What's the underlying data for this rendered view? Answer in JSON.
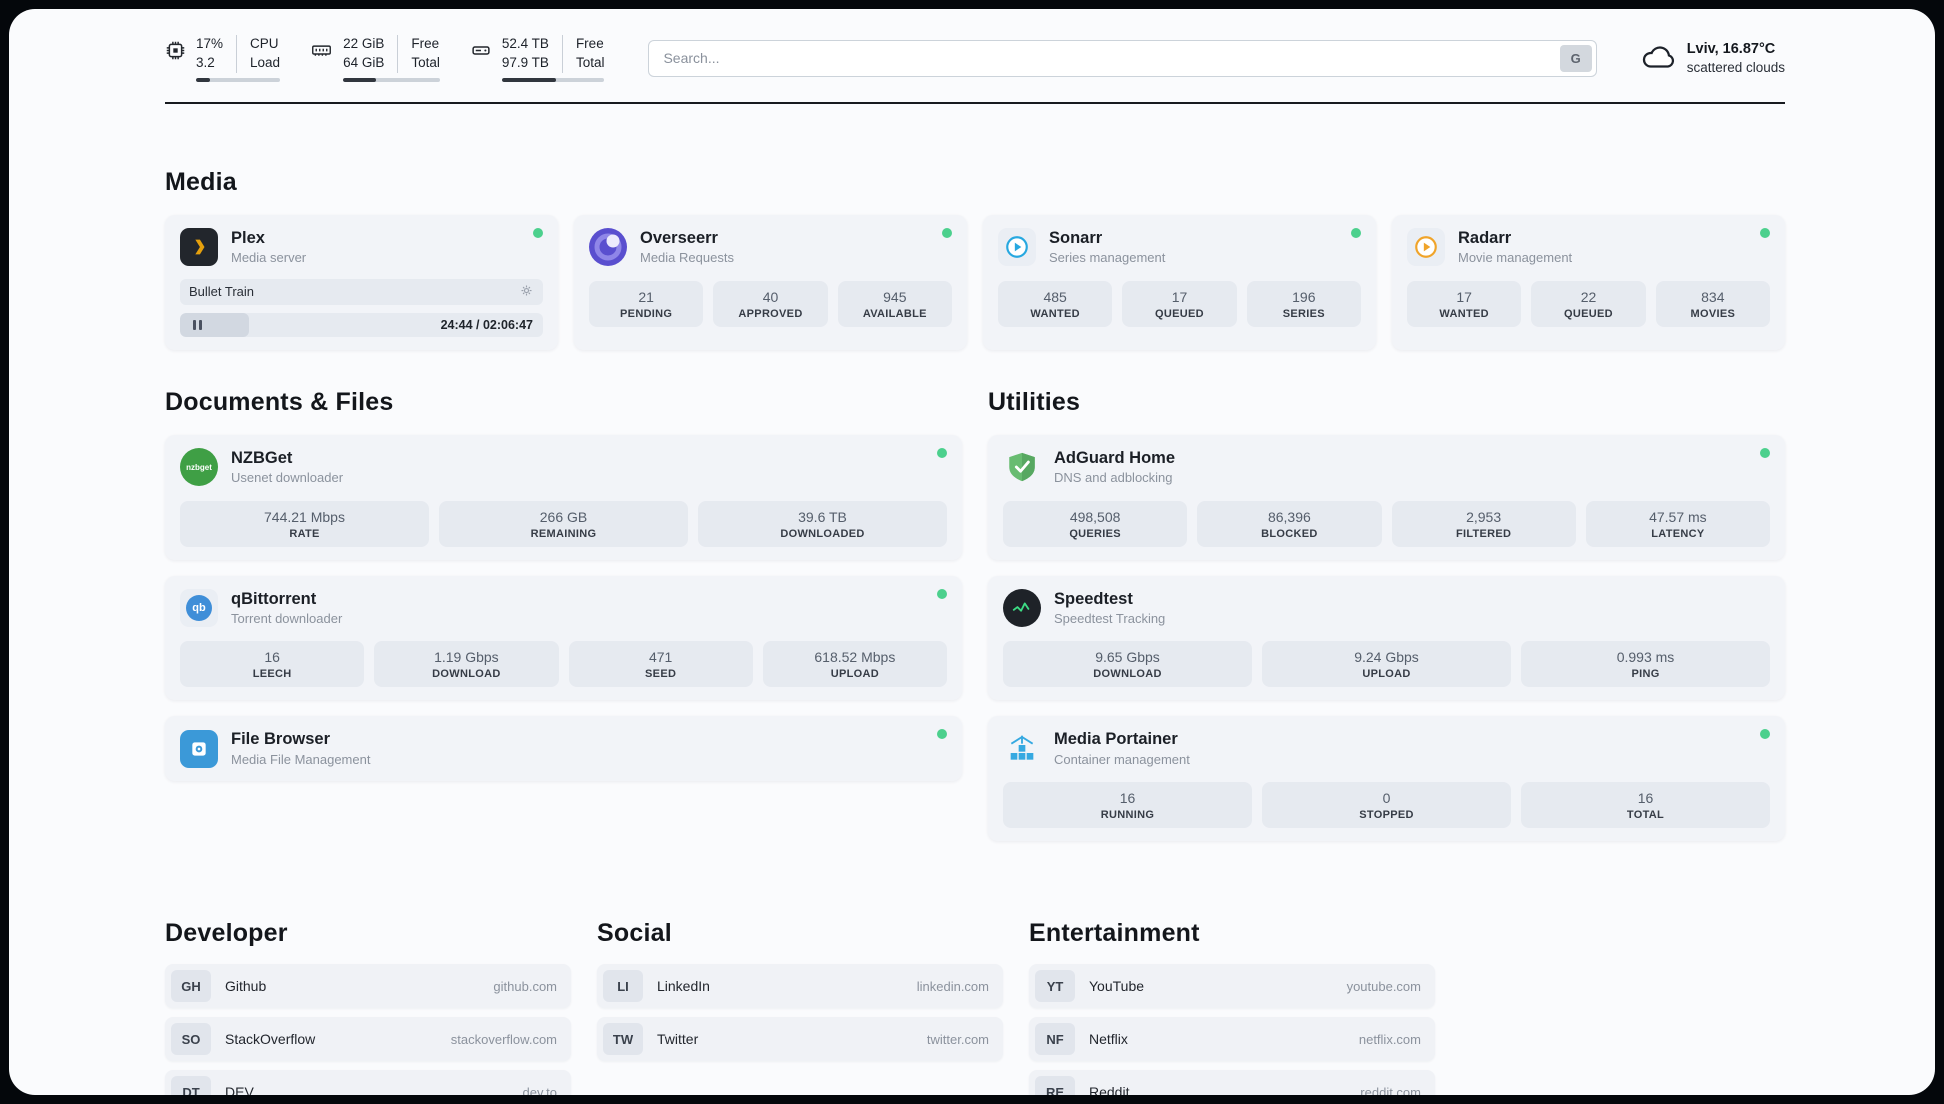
{
  "colors": {
    "status_green": "#4cd08d"
  },
  "topbar": {
    "cpu": {
      "value_top": "17%",
      "value_bottom": "3.2",
      "label_top": "CPU",
      "label_bottom": "Load",
      "bar": 17
    },
    "memory": {
      "value_top": "22 GiB",
      "value_bottom": "64 GiB",
      "label_top": "Free",
      "label_bottom": "Total",
      "bar": 34
    },
    "disk": {
      "value_top": "52.4 TB",
      "value_bottom": "97.9 TB",
      "label_top": "Free",
      "label_bottom": "Total",
      "bar": 53
    },
    "search": {
      "placeholder": "Search...",
      "button_label": "G"
    },
    "weather": {
      "location": "Lviv, 16.87°C",
      "condition": "scattered clouds"
    }
  },
  "media": {
    "title": "Media",
    "plex": {
      "name": "Plex",
      "subtitle": "Media server",
      "now_playing": "Bullet Train",
      "time": "24:44 / 02:06:47",
      "progress": 19
    },
    "overseerr": {
      "name": "Overseerr",
      "subtitle": "Media Requests",
      "stats": [
        {
          "value": "21",
          "label": "PENDING"
        },
        {
          "value": "40",
          "label": "APPROVED"
        },
        {
          "value": "945",
          "label": "AVAILABLE"
        }
      ]
    },
    "sonarr": {
      "name": "Sonarr",
      "subtitle": "Series management",
      "stats": [
        {
          "value": "485",
          "label": "WANTED"
        },
        {
          "value": "17",
          "label": "QUEUED"
        },
        {
          "value": "196",
          "label": "SERIES"
        }
      ]
    },
    "radarr": {
      "name": "Radarr",
      "subtitle": "Movie management",
      "stats": [
        {
          "value": "17",
          "label": "WANTED"
        },
        {
          "value": "22",
          "label": "QUEUED"
        },
        {
          "value": "834",
          "label": "MOVIES"
        }
      ]
    }
  },
  "documents": {
    "title": "Documents & Files",
    "nzbget": {
      "name": "NZBGet",
      "subtitle": "Usenet downloader",
      "icon_text": "nzbget",
      "stats": [
        {
          "value": "744.21 Mbps",
          "label": "RATE"
        },
        {
          "value": "266 GB",
          "label": "REMAINING"
        },
        {
          "value": "39.6 TB",
          "label": "DOWNLOADED"
        }
      ]
    },
    "qbittorrent": {
      "name": "qBittorrent",
      "subtitle": "Torrent downloader",
      "icon_text": "qb",
      "stats": [
        {
          "value": "16",
          "label": "LEECH"
        },
        {
          "value": "1.19 Gbps",
          "label": "DOWNLOAD"
        },
        {
          "value": "471",
          "label": "SEED"
        },
        {
          "value": "618.52 Mbps",
          "label": "UPLOAD"
        }
      ]
    },
    "filebrowser": {
      "name": "File Browser",
      "subtitle": "Media File Management"
    }
  },
  "utilities": {
    "title": "Utilities",
    "adguard": {
      "name": "AdGuard Home",
      "subtitle": "DNS and adblocking",
      "stats": [
        {
          "value": "498,508",
          "label": "QUERIES"
        },
        {
          "value": "86,396",
          "label": "BLOCKED"
        },
        {
          "value": "2,953",
          "label": "FILTERED"
        },
        {
          "value": "47.57 ms",
          "label": "LATENCY"
        }
      ]
    },
    "speedtest": {
      "name": "Speedtest",
      "subtitle": "Speedtest Tracking",
      "stats": [
        {
          "value": "9.65 Gbps",
          "label": "DOWNLOAD"
        },
        {
          "value": "9.24 Gbps",
          "label": "UPLOAD"
        },
        {
          "value": "0.993 ms",
          "label": "PING"
        }
      ]
    },
    "portainer": {
      "name": "Media Portainer",
      "subtitle": "Container management",
      "stats": [
        {
          "value": "16",
          "label": "RUNNING"
        },
        {
          "value": "0",
          "label": "STOPPED"
        },
        {
          "value": "16",
          "label": "TOTAL"
        }
      ]
    }
  },
  "bookmarks": {
    "developer": {
      "title": "Developer",
      "items": [
        {
          "abbr": "GH",
          "name": "Github",
          "url": "github.com"
        },
        {
          "abbr": "SO",
          "name": "StackOverflow",
          "url": "stackoverflow.com"
        },
        {
          "abbr": "DT",
          "name": "DEV",
          "url": "dev.to"
        }
      ]
    },
    "social": {
      "title": "Social",
      "items": [
        {
          "abbr": "LI",
          "name": "LinkedIn",
          "url": "linkedin.com"
        },
        {
          "abbr": "TW",
          "name": "Twitter",
          "url": "twitter.com"
        }
      ]
    },
    "entertainment": {
      "title": "Entertainment",
      "items": [
        {
          "abbr": "YT",
          "name": "YouTube",
          "url": "youtube.com"
        },
        {
          "abbr": "NF",
          "name": "Netflix",
          "url": "netflix.com"
        },
        {
          "abbr": "RE",
          "name": "Reddit",
          "url": "reddit.com"
        }
      ]
    }
  }
}
